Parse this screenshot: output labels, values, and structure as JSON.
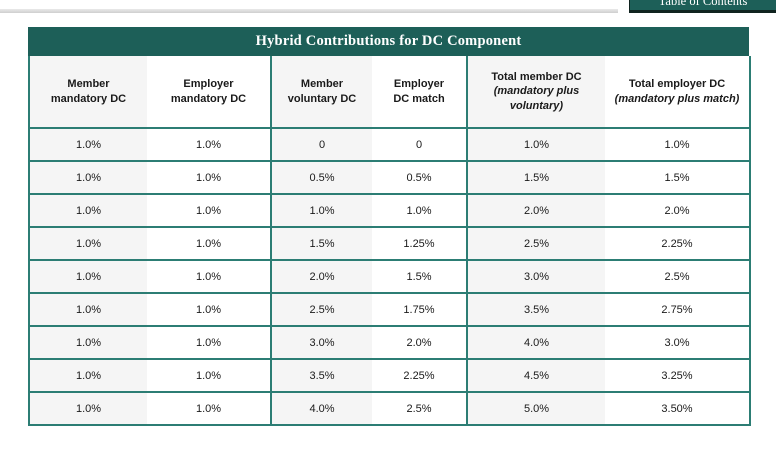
{
  "toc": {
    "label": "Table of Contents"
  },
  "colors": {
    "accent_teal": "#1d5f58",
    "table_border_teal": "#2c7d74",
    "stripe_gray": "#f5f5f5",
    "button_shadow": "#10231f",
    "rule_gray": "#d9d9d9"
  },
  "table": {
    "title": "Hybrid Contributions for DC Component",
    "columns": [
      {
        "lines": [
          "Member",
          "mandatory DC"
        ],
        "sub": ""
      },
      {
        "lines": [
          "Employer",
          "mandatory DC"
        ],
        "sub": ""
      },
      {
        "lines": [
          "Member",
          "voluntary DC"
        ],
        "sub": ""
      },
      {
        "lines": [
          "Employer",
          "DC match"
        ],
        "sub": ""
      },
      {
        "lines": [
          "Total member DC"
        ],
        "sub": "(mandatory plus voluntary)"
      },
      {
        "lines": [
          "Total employer DC"
        ],
        "sub": "(mandatory plus match)"
      }
    ],
    "rows": [
      [
        "1.0%",
        "1.0%",
        "0",
        "0",
        "1.0%",
        "1.0%"
      ],
      [
        "1.0%",
        "1.0%",
        "0.5%",
        "0.5%",
        "1.5%",
        "1.5%"
      ],
      [
        "1.0%",
        "1.0%",
        "1.0%",
        "1.0%",
        "2.0%",
        "2.0%"
      ],
      [
        "1.0%",
        "1.0%",
        "1.5%",
        "1.25%",
        "2.5%",
        "2.25%"
      ],
      [
        "1.0%",
        "1.0%",
        "2.0%",
        "1.5%",
        "3.0%",
        "2.5%"
      ],
      [
        "1.0%",
        "1.0%",
        "2.5%",
        "1.75%",
        "3.5%",
        "2.75%"
      ],
      [
        "1.0%",
        "1.0%",
        "3.0%",
        "2.0%",
        "4.0%",
        "3.0%"
      ],
      [
        "1.0%",
        "1.0%",
        "3.5%",
        "2.25%",
        "4.5%",
        "3.25%"
      ],
      [
        "1.0%",
        "1.0%",
        "4.0%",
        "2.5%",
        "5.0%",
        "3.50%"
      ]
    ]
  }
}
